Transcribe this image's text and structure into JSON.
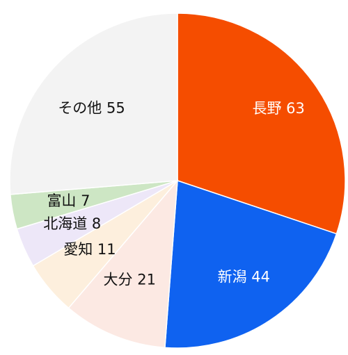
{
  "chart_data": {
    "type": "pie",
    "start_angle_deg": 0,
    "direction": "clockwise",
    "slices": [
      {
        "name": "長野",
        "value": 63,
        "label": "長野 63",
        "color": "#F54D00",
        "label_color": "#ffffff"
      },
      {
        "name": "新潟",
        "value": 44,
        "label": "新潟 44",
        "color": "#0F62F0",
        "label_color": "#ffffff"
      },
      {
        "name": "大分",
        "value": 21,
        "label": "大分 21",
        "color": "#FCE9E3",
        "label_color": "#111111"
      },
      {
        "name": "愛知",
        "value": 11,
        "label": "愛知 11",
        "color": "#FDEFDD",
        "label_color": "#111111"
      },
      {
        "name": "北海道",
        "value": 8,
        "label": "北海道 8",
        "color": "#EDE7F8",
        "label_color": "#111111"
      },
      {
        "name": "富山",
        "value": 7,
        "label": "富山 7",
        "color": "#CDE6C4",
        "label_color": "#111111"
      },
      {
        "name": "その他",
        "value": 55,
        "label": "その他 55",
        "color": "#F3F3F3",
        "label_color": "#111111"
      }
    ]
  }
}
